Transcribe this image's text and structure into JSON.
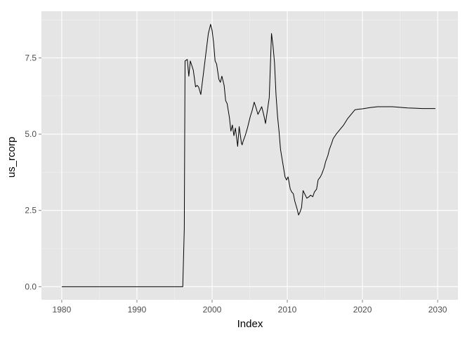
{
  "chart_data": {
    "type": "line",
    "title": "",
    "xlabel": "Index",
    "ylabel": "us_rcorp",
    "xlim": [
      1977.3,
      1932.7
    ],
    "ylim": [
      -0.43,
      9.03
    ],
    "grid": true,
    "x_ticks": [
      1980,
      1990,
      2000,
      2010,
      2020,
      2030
    ],
    "x_tick_labels": [
      "1980",
      "1990",
      "2000",
      "2010",
      "2020",
      "2030"
    ],
    "y_ticks": [
      0.0,
      2.5,
      5.0,
      7.5
    ],
    "y_tick_labels": [
      "0.0",
      "2.5",
      "5.0",
      "7.5"
    ],
    "colors": {
      "panel_background": "#e5e5e5",
      "grid_major": "#ffffff",
      "grid_minor": "#f2f2f2",
      "line": "#000000",
      "tick_label": "#4d4d4d"
    },
    "series": [
      {
        "x": [
          1980.0,
          1985.0,
          1990.0,
          1995.0,
          1996.0,
          1996.1,
          1996.3,
          1996.4,
          1996.7,
          1996.9,
          1997.1,
          1997.5,
          1997.8,
          1998.0,
          1998.2,
          1998.5,
          1998.8,
          1999.1,
          1999.3,
          1999.5,
          1999.8,
          2000.0,
          2000.2,
          2000.4,
          2000.6,
          2000.9,
          2001.1,
          2001.3,
          2001.6,
          2001.8,
          2002.0,
          2002.3,
          2002.5,
          2002.7,
          2002.9,
          2003.1,
          2003.4,
          2003.6,
          2003.9,
          2004.0,
          2004.1,
          2004.4,
          2004.7,
          2005.1,
          2005.3,
          2005.6,
          2005.8,
          2006.1,
          2006.3,
          2006.6,
          2006.9,
          2007.1,
          2007.4,
          2007.6,
          2007.9,
          2008.1,
          2008.3,
          2008.5,
          2008.7,
          2008.9,
          2009.1,
          2009.3,
          2009.5,
          2009.7,
          2009.9,
          2010.1,
          2010.4,
          2010.6,
          2010.8,
          2011.0,
          2011.3,
          2011.5,
          2011.7,
          2011.9,
          2012.1,
          2012.4,
          2012.6,
          2012.9,
          2013.1,
          2013.4,
          2013.6,
          2013.9,
          2014.1,
          2014.4,
          2014.6,
          2014.9,
          2015.1,
          2015.4,
          2015.6,
          2015.9,
          2016.1,
          2016.5,
          2017.0,
          2017.5,
          2018.0,
          2018.5,
          2019.0,
          2019.5,
          2020.0,
          2020.5,
          2021.0,
          2022.0,
          2023.0,
          2024.0,
          2025.0,
          2026.0,
          2027.0,
          2028.0,
          2029.0,
          2029.7
        ],
        "y": [
          0.0,
          0.0,
          0.0,
          0.0,
          0.0,
          0.0,
          1.9,
          7.4,
          7.45,
          6.9,
          7.4,
          7.1,
          6.55,
          6.6,
          6.55,
          6.3,
          6.9,
          7.5,
          7.9,
          8.3,
          8.6,
          8.4,
          8.0,
          7.4,
          7.3,
          6.8,
          6.7,
          6.9,
          6.6,
          6.1,
          6.0,
          5.55,
          5.1,
          5.3,
          4.95,
          5.2,
          4.6,
          5.25,
          4.7,
          4.65,
          4.75,
          4.95,
          5.2,
          5.6,
          5.75,
          6.05,
          5.9,
          5.65,
          5.75,
          5.9,
          5.6,
          5.35,
          5.85,
          6.2,
          8.3,
          7.9,
          7.35,
          6.3,
          5.6,
          5.1,
          4.5,
          4.2,
          3.9,
          3.6,
          3.5,
          3.6,
          3.2,
          3.1,
          3.05,
          2.8,
          2.55,
          2.35,
          2.45,
          2.6,
          3.15,
          3.0,
          2.9,
          2.95,
          3.0,
          2.95,
          3.1,
          3.2,
          3.5,
          3.6,
          3.7,
          3.9,
          4.1,
          4.3,
          4.5,
          4.7,
          4.85,
          5.0,
          5.15,
          5.3,
          5.5,
          5.65,
          5.8,
          5.82,
          5.83,
          5.85,
          5.87,
          5.9,
          5.9,
          5.9,
          5.88,
          5.86,
          5.85,
          5.84,
          5.84,
          5.84
        ]
      }
    ]
  }
}
